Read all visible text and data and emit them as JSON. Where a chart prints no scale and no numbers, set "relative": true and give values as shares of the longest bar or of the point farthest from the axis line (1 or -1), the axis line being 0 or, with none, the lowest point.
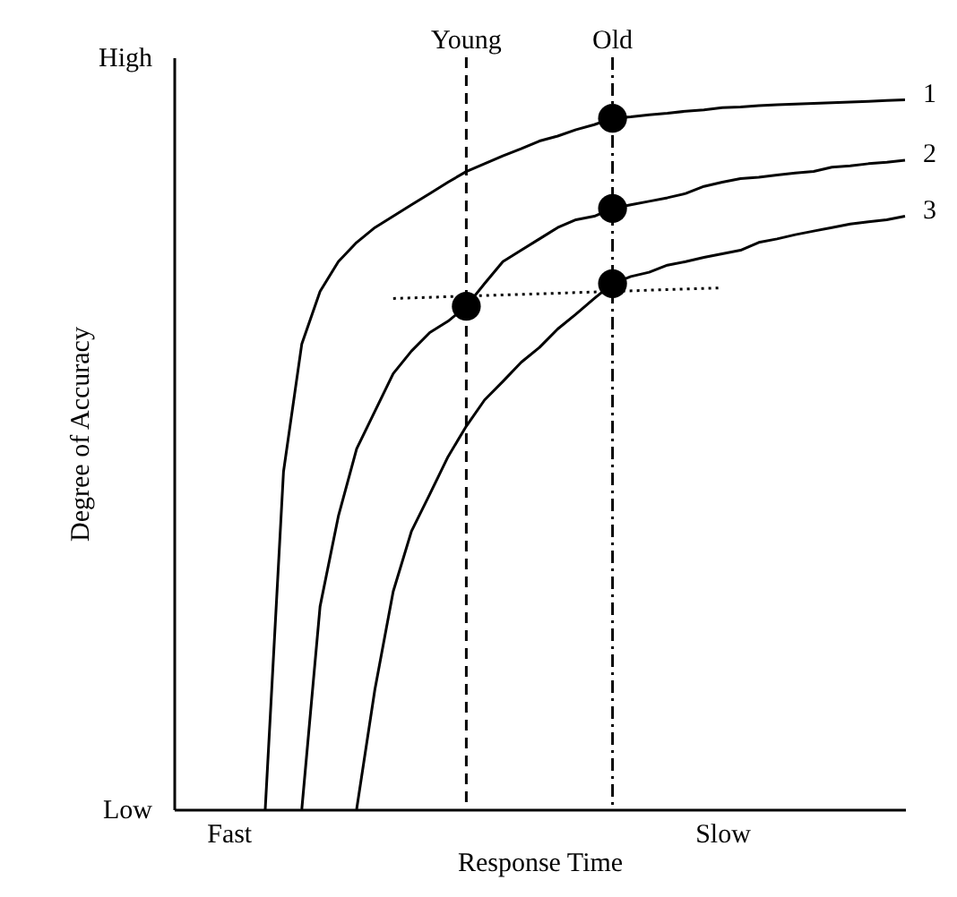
{
  "chart_data": {
    "type": "line",
    "relative": true,
    "xlabel": "Response Time",
    "ylabel": "Degree of Accuracy",
    "annotations": [
      "High",
      "Low",
      "Young",
      "Old"
    ],
    "categories": [
      null,
      null,
      null,
      "Fast",
      null,
      null,
      null,
      null,
      null,
      null,
      null,
      null,
      null,
      null,
      null,
      null,
      null,
      null,
      null,
      null,
      null,
      null,
      null,
      null,
      null,
      null,
      null,
      null,
      null,
      null,
      "Slow",
      null,
      null,
      null,
      null,
      null,
      null,
      null,
      null,
      null,
      null
    ],
    "series": [
      {
        "name": "1",
        "color": "#000000",
        "line_style": "solid",
        "values": [
          null,
          null,
          null,
          null,
          null,
          0,
          0.476,
          0.656,
          0.73,
          0.772,
          0.799,
          0.82,
          0.836,
          0.852,
          0.868,
          0.884,
          0.899,
          0.91,
          0.921,
          0.931,
          0.942,
          0.949,
          0.958,
          0.965,
          0.974,
          0.976,
          0.979,
          0.981,
          0.984,
          0.986,
          0.989,
          0.99,
          0.992,
          0.993,
          0.994,
          0.995,
          0.996,
          0.997,
          0.998,
          0.999,
          1
        ]
      },
      {
        "name": "2",
        "color": "#000000",
        "line_style": "solid",
        "values": [
          null,
          null,
          null,
          null,
          null,
          null,
          null,
          0,
          0.286,
          0.413,
          0.508,
          0.561,
          0.614,
          0.646,
          0.672,
          0.688,
          0.709,
          0.741,
          0.772,
          0.788,
          0.804,
          0.82,
          0.831,
          0.836,
          0.847,
          0.852,
          0.857,
          0.862,
          0.868,
          0.878,
          0.884,
          0.889,
          0.891,
          0.894,
          0.897,
          0.899,
          0.905,
          0.907,
          0.91,
          0.912,
          0.915
        ]
      },
      {
        "name": "3",
        "color": "#000000",
        "line_style": "solid",
        "values": [
          null,
          null,
          null,
          null,
          null,
          null,
          null,
          null,
          null,
          null,
          0,
          0.169,
          0.307,
          0.392,
          0.444,
          0.497,
          0.54,
          0.577,
          0.603,
          0.63,
          0.651,
          0.677,
          0.698,
          0.72,
          0.741,
          0.751,
          0.757,
          0.767,
          0.772,
          0.778,
          0.783,
          0.788,
          0.799,
          0.804,
          0.81,
          0.815,
          0.82,
          0.825,
          0.828,
          0.831,
          0.836
        ]
      },
      {
        "color": "#000000",
        "line_style": "dotted",
        "values": [
          null,
          null,
          null,
          null,
          null,
          null,
          null,
          null,
          null,
          null,
          null,
          null,
          0.72,
          null,
          null,
          null,
          null,
          null,
          null,
          null,
          null,
          null,
          null,
          null,
          null,
          null,
          null,
          null,
          null,
          null,
          0.735,
          null,
          null,
          null,
          null,
          null,
          null,
          null,
          null,
          null,
          null
        ]
      },
      {
        "color": "#000000",
        "type": "scatter",
        "marker": "circle",
        "values": [
          null,
          null,
          null,
          null,
          null,
          null,
          null,
          null,
          null,
          null,
          null,
          null,
          null,
          null,
          null,
          null,
          null,
          null,
          null,
          null,
          null,
          null,
          null,
          null,
          0.974,
          null,
          null,
          null,
          null,
          null,
          null,
          null,
          null,
          null,
          null,
          null,
          null,
          null,
          null,
          null,
          null
        ]
      },
      {
        "color": "#000000",
        "type": "scatter",
        "marker": "circle",
        "values": [
          null,
          null,
          null,
          null,
          null,
          null,
          null,
          null,
          null,
          null,
          null,
          null,
          null,
          null,
          null,
          null,
          null,
          null,
          null,
          null,
          null,
          null,
          null,
          null,
          0.847,
          null,
          null,
          null,
          null,
          null,
          null,
          null,
          null,
          null,
          null,
          null,
          null,
          null,
          null,
          null,
          null
        ]
      },
      {
        "color": "#000000",
        "type": "scatter",
        "marker": "circle",
        "values": [
          null,
          null,
          null,
          null,
          null,
          null,
          null,
          null,
          null,
          null,
          null,
          null,
          null,
          null,
          null,
          null,
          0.709,
          null,
          null,
          null,
          null,
          null,
          null,
          null,
          0.741,
          null,
          null,
          null,
          null,
          null,
          null,
          null,
          null,
          null,
          null,
          null,
          null,
          null,
          null,
          null,
          null
        ]
      }
    ]
  }
}
